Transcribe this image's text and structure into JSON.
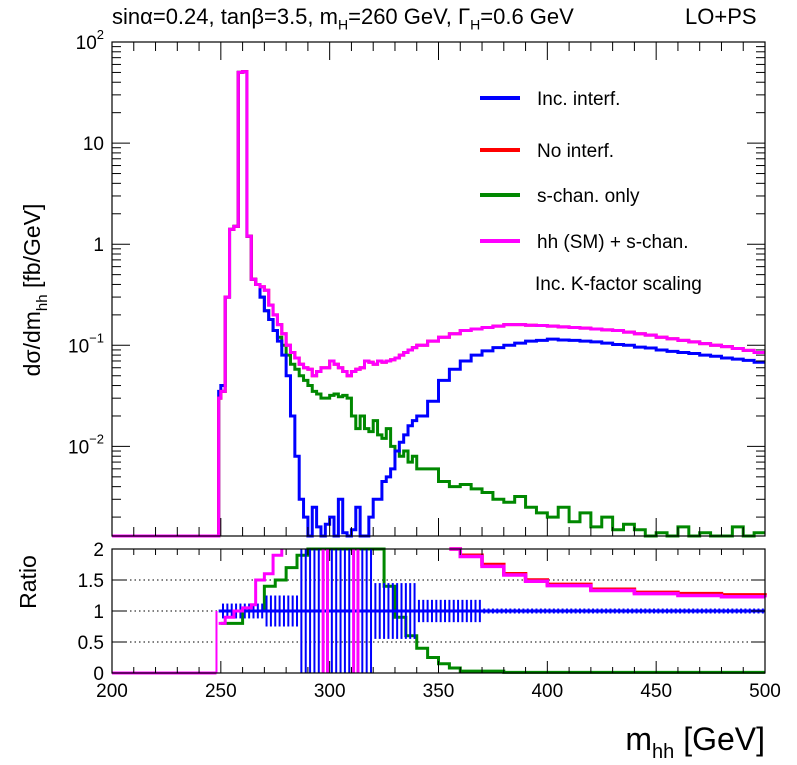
{
  "header": {
    "sin_alpha": "sinα=0.24,",
    "tan_beta": "tanβ=3.5,",
    "mass_prefix": "m",
    "mass_sub": "H",
    "mass_value": "=260 GeV,",
    "width_prefix": "Γ",
    "width_sub": "H",
    "width_value": "=0.6 GeV",
    "order": "LO+PS"
  },
  "chart_data": [
    {
      "type": "line",
      "style": "step-histogram",
      "title": "sinα=0.24, tanβ=3.5, mH=260 GeV, ΓH=0.6 GeV — LO+PS",
      "xlabel": "m_hh [GeV]",
      "ylabel": "dσ/dm_hh [fb/GeV]",
      "xlim": [
        200,
        500
      ],
      "ylim": [
        0.0013,
        100
      ],
      "yscale": "log",
      "y_ticks": [
        {
          "value": 0.01,
          "base": "10",
          "exp": "−2"
        },
        {
          "value": 0.1,
          "base": "10",
          "exp": "−1"
        },
        {
          "value": 1,
          "base": "1",
          "exp": ""
        },
        {
          "value": 10,
          "base": "10",
          "exp": ""
        },
        {
          "value": 100,
          "base": "10",
          "exp": "2"
        }
      ],
      "legend_position": "top-right",
      "annotation": "Inc. K-factor scaling",
      "x": [
        200,
        248,
        249,
        250,
        252,
        254,
        256,
        258,
        260,
        262,
        264,
        266,
        268,
        270,
        272,
        274,
        276,
        278,
        280,
        282,
        284,
        286,
        288,
        290,
        292,
        294,
        296,
        298,
        300,
        302,
        304,
        306,
        308,
        310,
        312,
        314,
        316,
        318,
        320,
        322,
        324,
        326,
        328,
        330,
        332,
        334,
        336,
        338,
        340,
        345,
        350,
        355,
        360,
        365,
        370,
        375,
        380,
        385,
        390,
        395,
        400,
        405,
        410,
        415,
        420,
        425,
        430,
        435,
        440,
        445,
        450,
        455,
        460,
        465,
        470,
        475,
        480,
        485,
        490,
        495,
        500
      ],
      "series": [
        {
          "name": "Inc. interf.",
          "color": "#0000ff",
          "values": [
            0.0013,
            0.0013,
            0.035,
            0.04,
            0.3,
            1.4,
            1.5,
            50,
            51,
            1.2,
            0.45,
            0.4,
            0.3,
            0.22,
            0.18,
            0.14,
            0.11,
            0.08,
            0.05,
            0.02,
            0.008,
            0.003,
            0.002,
            0.0013,
            0.0025,
            0.0016,
            0.0013,
            0.0017,
            0.002,
            0.0013,
            0.003,
            0.0014,
            0.0013,
            0.0015,
            0.0025,
            0.0013,
            0.0013,
            0.002,
            0.003,
            0.003,
            0.0045,
            0.005,
            0.006,
            0.009,
            0.011,
            0.013,
            0.016,
            0.018,
            0.02,
            0.028,
            0.045,
            0.058,
            0.07,
            0.08,
            0.088,
            0.095,
            0.1,
            0.105,
            0.11,
            0.112,
            0.115,
            0.113,
            0.112,
            0.11,
            0.108,
            0.105,
            0.102,
            0.1,
            0.096,
            0.094,
            0.09,
            0.087,
            0.085,
            0.083,
            0.08,
            0.078,
            0.075,
            0.073,
            0.071,
            0.068,
            0.068
          ]
        },
        {
          "name": "No interf.",
          "color": "#ff0000",
          "values": [
            0.0013,
            0.0013,
            0.03,
            0.035,
            0.3,
            1.4,
            1.5,
            50,
            51,
            1.2,
            0.45,
            0.4,
            0.38,
            0.35,
            0.25,
            0.2,
            0.16,
            0.13,
            0.1,
            0.085,
            0.075,
            0.065,
            0.06,
            0.058,
            0.05,
            0.055,
            0.06,
            0.06,
            0.07,
            0.065,
            0.06,
            0.055,
            0.05,
            0.055,
            0.058,
            0.06,
            0.07,
            0.068,
            0.065,
            0.07,
            0.068,
            0.07,
            0.072,
            0.075,
            0.08,
            0.085,
            0.09,
            0.095,
            0.1,
            0.11,
            0.12,
            0.13,
            0.14,
            0.145,
            0.15,
            0.155,
            0.16,
            0.16,
            0.158,
            0.157,
            0.155,
            0.152,
            0.15,
            0.148,
            0.145,
            0.142,
            0.14,
            0.135,
            0.13,
            0.126,
            0.12,
            0.116,
            0.112,
            0.108,
            0.104,
            0.1,
            0.097,
            0.093,
            0.089,
            0.085,
            0.085
          ]
        },
        {
          "name": "s-chan. only",
          "color": "#008800",
          "values": [
            0.0013,
            0.0013,
            0.03,
            0.035,
            0.3,
            1.4,
            1.5,
            50,
            51,
            1.2,
            0.45,
            0.4,
            0.3,
            0.22,
            0.18,
            0.14,
            0.12,
            0.1,
            0.08,
            0.065,
            0.058,
            0.05,
            0.045,
            0.04,
            0.035,
            0.033,
            0.03,
            0.03,
            0.032,
            0.033,
            0.031,
            0.032,
            0.03,
            0.02,
            0.015,
            0.02,
            0.015,
            0.014,
            0.018,
            0.013,
            0.012,
            0.015,
            0.01,
            0.009,
            0.008,
            0.009,
            0.007,
            0.008,
            0.006,
            0.006,
            0.0045,
            0.004,
            0.0042,
            0.0038,
            0.0035,
            0.003,
            0.0028,
            0.0032,
            0.0025,
            0.0022,
            0.002,
            0.0025,
            0.0018,
            0.0022,
            0.0016,
            0.002,
            0.0015,
            0.0017,
            0.0015,
            0.0013,
            0.0014,
            0.0013,
            0.0016,
            0.0013,
            0.0014,
            0.0013,
            0.0013,
            0.0016,
            0.0013,
            0.0014,
            0.0014
          ]
        },
        {
          "name": "hh (SM) + s-chan.",
          "color": "#ff00ff",
          "values": [
            0.0013,
            0.0013,
            0.03,
            0.035,
            0.3,
            1.4,
            1.5,
            50,
            51,
            1.2,
            0.45,
            0.4,
            0.38,
            0.35,
            0.25,
            0.2,
            0.16,
            0.13,
            0.1,
            0.085,
            0.075,
            0.065,
            0.06,
            0.058,
            0.05,
            0.055,
            0.06,
            0.06,
            0.07,
            0.065,
            0.06,
            0.055,
            0.05,
            0.055,
            0.058,
            0.06,
            0.07,
            0.068,
            0.065,
            0.07,
            0.068,
            0.07,
            0.072,
            0.075,
            0.08,
            0.085,
            0.09,
            0.095,
            0.1,
            0.11,
            0.12,
            0.13,
            0.14,
            0.145,
            0.15,
            0.155,
            0.16,
            0.16,
            0.158,
            0.157,
            0.155,
            0.152,
            0.15,
            0.148,
            0.145,
            0.142,
            0.14,
            0.135,
            0.13,
            0.126,
            0.12,
            0.116,
            0.112,
            0.108,
            0.104,
            0.1,
            0.097,
            0.093,
            0.089,
            0.085,
            0.085
          ]
        }
      ]
    },
    {
      "type": "line",
      "style": "step-histogram",
      "ylabel": "Ratio",
      "xlim": [
        200,
        500
      ],
      "ylim": [
        0,
        2
      ],
      "x_ticks": [
        200,
        250,
        300,
        350,
        400,
        450,
        500
      ],
      "y_ticks": [
        "0",
        "0.5",
        "1",
        "1.5",
        "2"
      ],
      "reference_lines": [
        0.5,
        1,
        1.5
      ],
      "series": [
        {
          "name": "Inc. interf.",
          "color": "#0000ff",
          "shown_value": 1.0
        },
        {
          "name": "No interf.",
          "color": "#ff0000",
          "x": [
            355,
            360,
            370,
            380,
            390,
            400,
            420,
            440,
            460,
            480,
            500
          ],
          "values": [
            2.0,
            1.9,
            1.75,
            1.6,
            1.5,
            1.43,
            1.35,
            1.3,
            1.28,
            1.26,
            1.25
          ]
        },
        {
          "name": "s-chan. only",
          "color": "#008800",
          "x": [
            250,
            260,
            270,
            275,
            280,
            285,
            290,
            320,
            325,
            330,
            335,
            340,
            345,
            350,
            355,
            360,
            380,
            400,
            500
          ],
          "values": [
            0.8,
            1.0,
            1.4,
            1.5,
            1.7,
            1.9,
            2.0,
            2.0,
            1.4,
            0.9,
            0.6,
            0.4,
            0.25,
            0.15,
            0.08,
            0.03,
            0.01,
            0.01,
            0.01
          ]
        },
        {
          "name": "hh (SM) + s-chan.",
          "color": "#ff00ff",
          "x": [
            355,
            360,
            370,
            380,
            390,
            400,
            420,
            440,
            460,
            480,
            500
          ],
          "values": [
            2.0,
            1.88,
            1.72,
            1.58,
            1.48,
            1.41,
            1.33,
            1.28,
            1.25,
            1.23,
            1.22
          ]
        }
      ]
    }
  ]
}
